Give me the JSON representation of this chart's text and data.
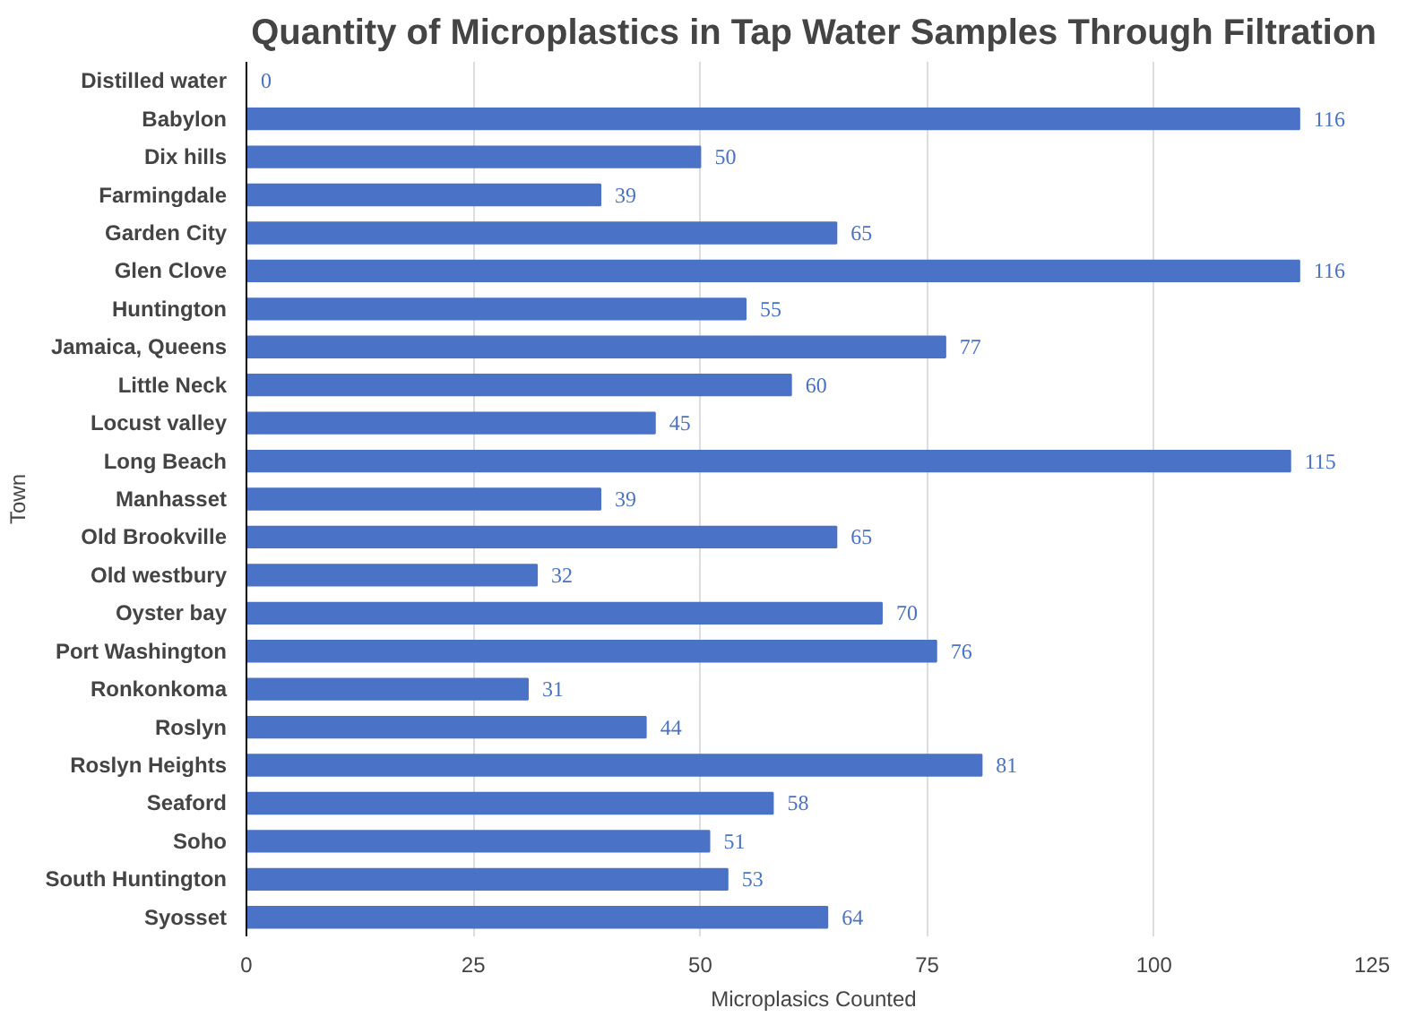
{
  "chart_data": {
    "type": "bar",
    "orientation": "horizontal",
    "title": "Quantity of Microplastics in Tap Water Samples Through Filtration",
    "xlabel": "Microplasics Counted",
    "ylabel": "Town",
    "categories": [
      "Distilled water",
      "Babylon",
      "Dix hills",
      "Farmingdale",
      "Garden City",
      "Glen Clove",
      "Huntington",
      "Jamaica, Queens",
      "Little Neck",
      "Locust valley",
      "Long Beach",
      "Manhasset",
      "Old Brookville",
      "Old westbury",
      "Oyster bay",
      "Port Washington",
      "Ronkonkoma",
      "Roslyn",
      "Roslyn Heights",
      "Seaford",
      "Soho",
      "South Huntington",
      "Syosset"
    ],
    "values": [
      0,
      116,
      50,
      39,
      65,
      116,
      55,
      77,
      60,
      45,
      115,
      39,
      65,
      32,
      70,
      76,
      31,
      44,
      81,
      58,
      51,
      53,
      64
    ],
    "color": "#4a72c6",
    "xlim": [
      0,
      125
    ],
    "xticks": [
      0,
      25,
      50,
      75,
      100,
      125
    ],
    "grid": "x",
    "data_labels": true
  }
}
